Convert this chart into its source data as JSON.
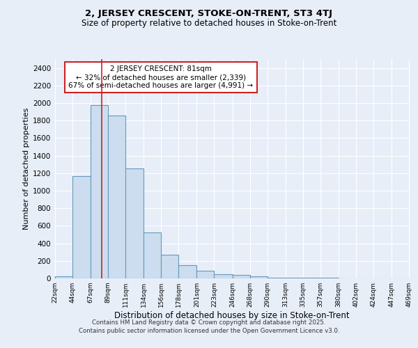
{
  "title1": "2, JERSEY CRESCENT, STOKE-ON-TRENT, ST3 4TJ",
  "title2": "Size of property relative to detached houses in Stoke-on-Trent",
  "xlabel": "Distribution of detached houses by size in Stoke-on-Trent",
  "ylabel": "Number of detached properties",
  "bin_edges": [
    22,
    44,
    67,
    89,
    111,
    134,
    156,
    178,
    201,
    223,
    246,
    268,
    290,
    313,
    335,
    357,
    380,
    402,
    424,
    447,
    469
  ],
  "bar_heights": [
    25,
    1170,
    1980,
    1860,
    1250,
    520,
    270,
    150,
    90,
    45,
    40,
    20,
    10,
    5,
    5,
    4,
    3,
    2,
    2,
    2
  ],
  "bar_color": "#ccddef",
  "bar_edge_color": "#6699bb",
  "bar_linewidth": 0.8,
  "vline_x": 81,
  "vline_color": "#cc2222",
  "vline_linewidth": 1.2,
  "annotation_text": "2 JERSEY CRESCENT: 81sqm\n← 32% of detached houses are smaller (2,339)\n67% of semi-detached houses are larger (4,991) →",
  "annotation_fontsize": 7.5,
  "annotation_box_color": "white",
  "annotation_edge_color": "#cc2222",
  "ylim": [
    0,
    2500
  ],
  "yticks": [
    0,
    200,
    400,
    600,
    800,
    1000,
    1200,
    1400,
    1600,
    1800,
    2000,
    2200,
    2400
  ],
  "bg_color": "#e8eef8",
  "grid_color": "white",
  "footer1": "Contains HM Land Registry data © Crown copyright and database right 2025.",
  "footer2": "Contains public sector information licensed under the Open Government Licence v3.0.",
  "title1_fontsize": 9.5,
  "title2_fontsize": 8.5,
  "ylabel_fontsize": 8,
  "xlabel_fontsize": 8.5
}
